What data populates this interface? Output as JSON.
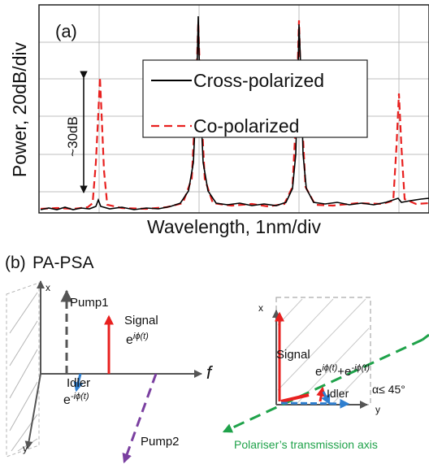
{
  "panel_a": {
    "label": "(a)",
    "ylabel": "Power, 20dB/div",
    "xlabel": "Wavelength, 1nm/div",
    "annotation": "~30dB",
    "legend": [
      {
        "label": "Cross-polarized",
        "color": "#000000",
        "style": "solid"
      },
      {
        "label": "Co-polarized",
        "color": "#e8201f",
        "style": "dashed"
      }
    ]
  },
  "panel_b": {
    "label": "(b)",
    "title": "PA-PSA",
    "left": {
      "axis_x": "x",
      "axis_y": "y",
      "axis_f": "f",
      "pump1": "Pump1",
      "pump2": "Pump2",
      "signal": "Signal",
      "signal_phase": "e",
      "signal_phase_exp": "iϕ(t)",
      "idler": "Idler",
      "idler_phase": "e",
      "idler_phase_exp": "-iϕ(t)"
    },
    "right": {
      "axis_x": "x",
      "axis_y": "y",
      "signal": "Signal",
      "sum_a": "e",
      "sum_a_exp": "iϕ(t)",
      "sum_plus": "+e",
      "sum_b_exp": "-iϕ(t)",
      "idler": "Idler",
      "angle": "α≤ 45°",
      "polariser": "Polariser’s transmission axis"
    },
    "colors": {
      "signal": "#e8201f",
      "idler": "#2f7fd0",
      "pump": "#555555",
      "pump2": "#7a3fa0",
      "polariser": "#1fa24a"
    }
  }
}
